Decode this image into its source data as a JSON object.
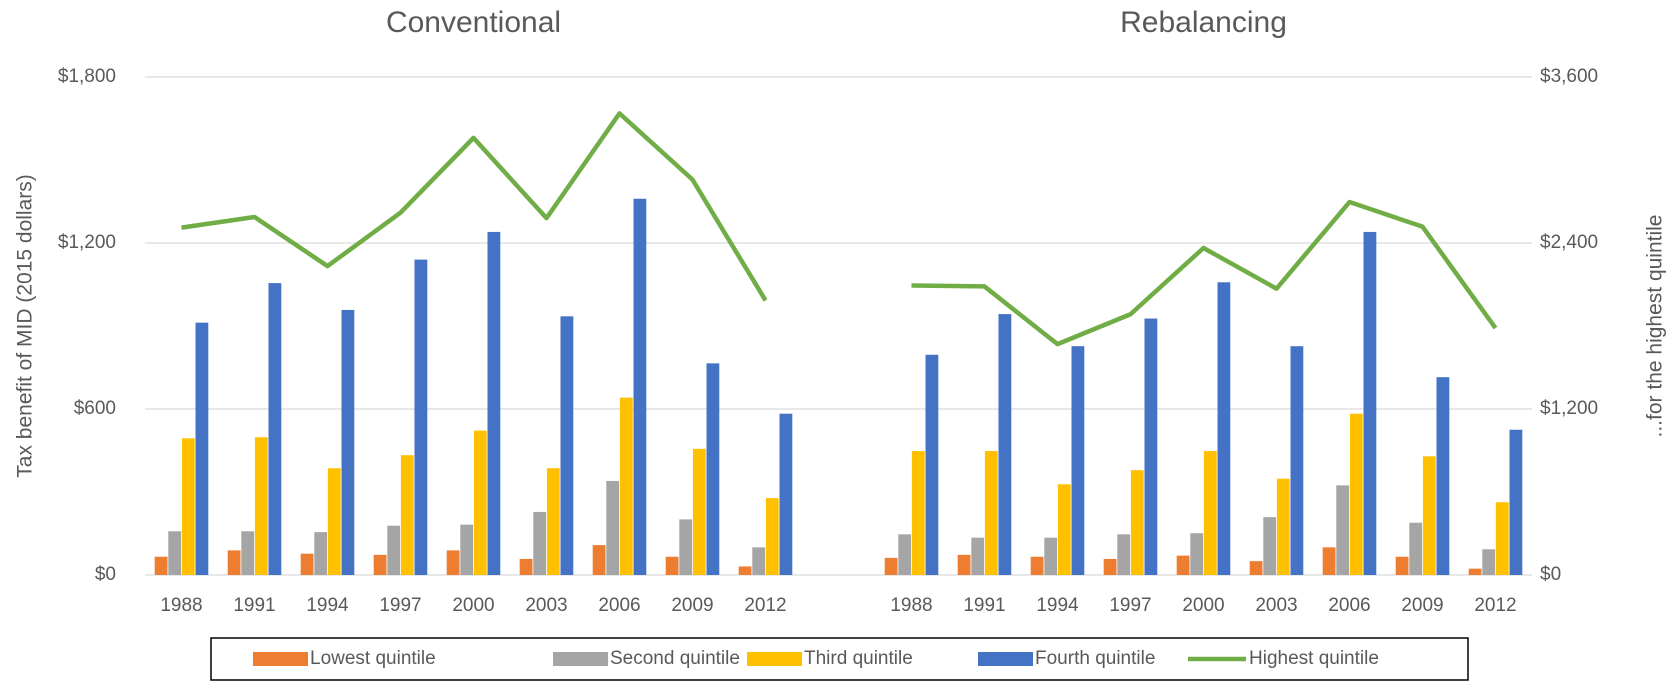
{
  "chart_data": {
    "type": "bar",
    "ylabel": "Tax benefit of MID (2015 dollars)",
    "y2label": "...for the highest quintile",
    "ylim": [
      0,
      1800
    ],
    "yticks": [
      {
        "value": 0,
        "label": "$0"
      },
      {
        "value": 600,
        "label": "$600"
      },
      {
        "value": 1200,
        "label": "$1,200"
      },
      {
        "value": 1800,
        "label": "$1,800"
      }
    ],
    "y2lim": [
      0,
      3600
    ],
    "y2ticks": [
      {
        "value": 0,
        "label": "$0"
      },
      {
        "value": 1200,
        "label": "$1,200"
      },
      {
        "value": 2400,
        "label": "$2,400"
      },
      {
        "value": 3600,
        "label": "$3,600"
      }
    ],
    "grid": true,
    "legend": "bottom",
    "series": [
      {
        "name": "Lowest quintile",
        "color": "#ed7d31",
        "type": "bar"
      },
      {
        "name": "Second quintile",
        "color": "#a5a5a5",
        "type": "bar"
      },
      {
        "name": "Third quintile",
        "color": "#ffc000",
        "type": "bar"
      },
      {
        "name": "Fourth quintile",
        "color": "#4472c4",
        "type": "bar"
      },
      {
        "name": "Highest quintile",
        "color": "#70ad47",
        "type": "line",
        "axis": "y2"
      }
    ],
    "panels": [
      {
        "title": "Conventional",
        "categories": [
          "1988",
          "1991",
          "1994",
          "1997",
          "2000",
          "2003",
          "2006",
          "2009",
          "2012"
        ],
        "series": [
          {
            "values": [
              66,
              89,
              77,
              73,
              89,
              58,
              108,
              66,
              31
            ]
          },
          {
            "values": [
              158,
              158,
              155,
              178,
              182,
              228,
              340,
              201,
              100
            ]
          },
          {
            "values": [
              494,
              498,
              386,
              433,
              522,
              386,
              641,
              456,
              278
            ]
          },
          {
            "values": [
              912,
              1055,
              958,
              1140,
              1240,
              935,
              1360,
              765,
              583
            ]
          },
          {
            "values": [
              2511,
              2588,
              2233,
              2619,
              3160,
              2580,
              3337,
              2858,
              1985
            ]
          }
        ]
      },
      {
        "title": "Rebalancing",
        "categories": [
          "1988",
          "1991",
          "1994",
          "1997",
          "2000",
          "2003",
          "2006",
          "2009",
          "2012"
        ],
        "series": [
          {
            "values": [
              62,
              73,
              66,
              58,
              70,
              50,
              100,
              66,
              23
            ]
          },
          {
            "values": [
              147,
              135,
              135,
              147,
              151,
              209,
              324,
              189,
              93
            ]
          },
          {
            "values": [
              448,
              448,
              328,
              379,
              448,
              348,
              583,
              429,
              263
            ]
          },
          {
            "values": [
              796,
              943,
              827,
              927,
              1058,
              827,
              1240,
              715,
              525
            ]
          },
          {
            "values": [
              2093,
              2086,
              1669,
              1885,
              2364,
              2070,
              2696,
              2518,
              1785
            ]
          }
        ]
      }
    ]
  }
}
